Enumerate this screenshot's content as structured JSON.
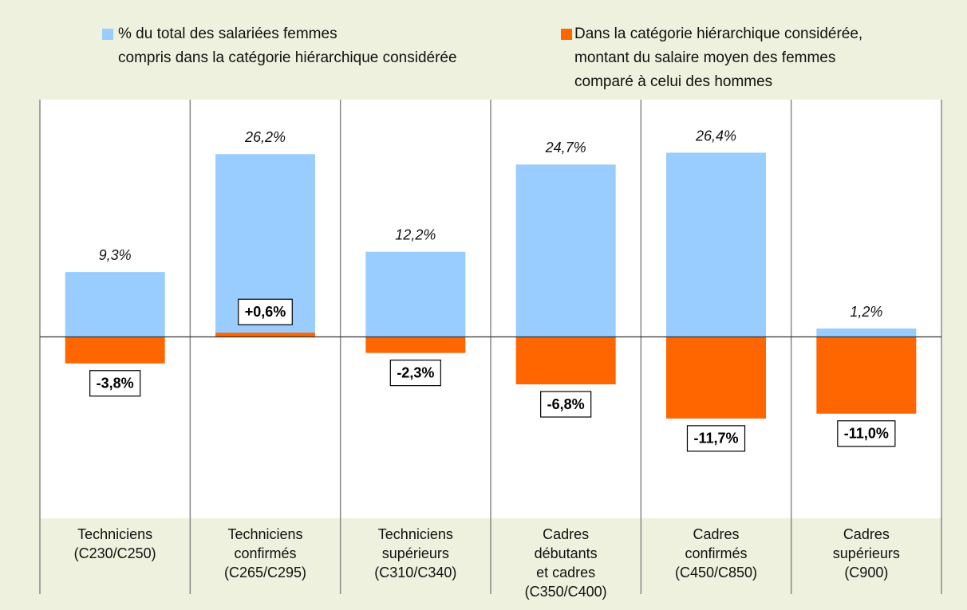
{
  "chart_data": {
    "type": "bar",
    "categories": [
      "Techniciens\n(C230/C250)",
      "Techniciens\nconfirmés\n(C265/C295)",
      "Techniciens\nsupérieurs\n(C310/C340)",
      "Cadres\ndébutants\net cadres\n(C350/C400)",
      "Cadres\nconfirmés\n(C450/C850)",
      "Cadres\nsupérieurs\n(C900)"
    ],
    "series": [
      {
        "name": "% du total des salariées femmes\ncompris dans la catégorie hiérarchique considérée",
        "color": "#99ccff",
        "values": [
          9.3,
          26.2,
          12.2,
          24.7,
          26.4,
          1.2
        ],
        "value_labels": [
          "9,3%",
          "26,2%",
          "12,2%",
          "24,7%",
          "26,4%",
          "1,2%"
        ]
      },
      {
        "name": "Dans la catégorie hiérarchique considérée,\nmontant du salaire moyen des femmes\ncomparé à celui des hommes",
        "color": "#ff6600",
        "values": [
          -3.8,
          0.6,
          -2.3,
          -6.8,
          -11.7,
          -11.0
        ],
        "value_labels": [
          "-3,8%",
          "+0,6%",
          "-2,3%",
          "-6,8%",
          "-11,7%",
          "-11,0%"
        ]
      }
    ],
    "ylim": [
      -26,
      34
    ]
  }
}
